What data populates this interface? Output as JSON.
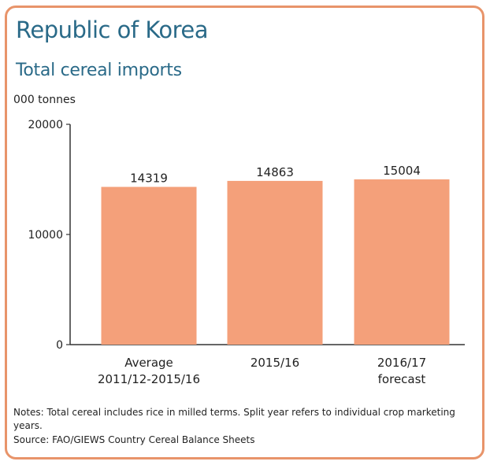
{
  "title": "Republic of Korea",
  "subtitle": "Total cereal imports",
  "units": "000 tonnes",
  "notes": "Notes: Total cereal includes rice in milled terms. Split year refers to individual crop marketing years.",
  "source": "Source: FAO/GIEWS Country Cereal Balance Sheets",
  "colors": {
    "bar": "#f4a07a",
    "border": "#e8946a",
    "title": "#2a6a88"
  },
  "chart_data": {
    "type": "bar",
    "categories": [
      [
        "Average",
        "2011/12-2015/16"
      ],
      [
        "2015/16"
      ],
      [
        "2016/17",
        "forecast"
      ]
    ],
    "values": [
      14319,
      14863,
      15004
    ],
    "data_labels": [
      "14319",
      "14863",
      "15004"
    ],
    "yticks": [
      0,
      10000,
      20000
    ],
    "ytick_labels": [
      "0",
      "10000",
      "20000"
    ],
    "ylim": [
      0,
      20000
    ],
    "ylabel": "000 tonnes",
    "grid": false,
    "legend": "none"
  }
}
